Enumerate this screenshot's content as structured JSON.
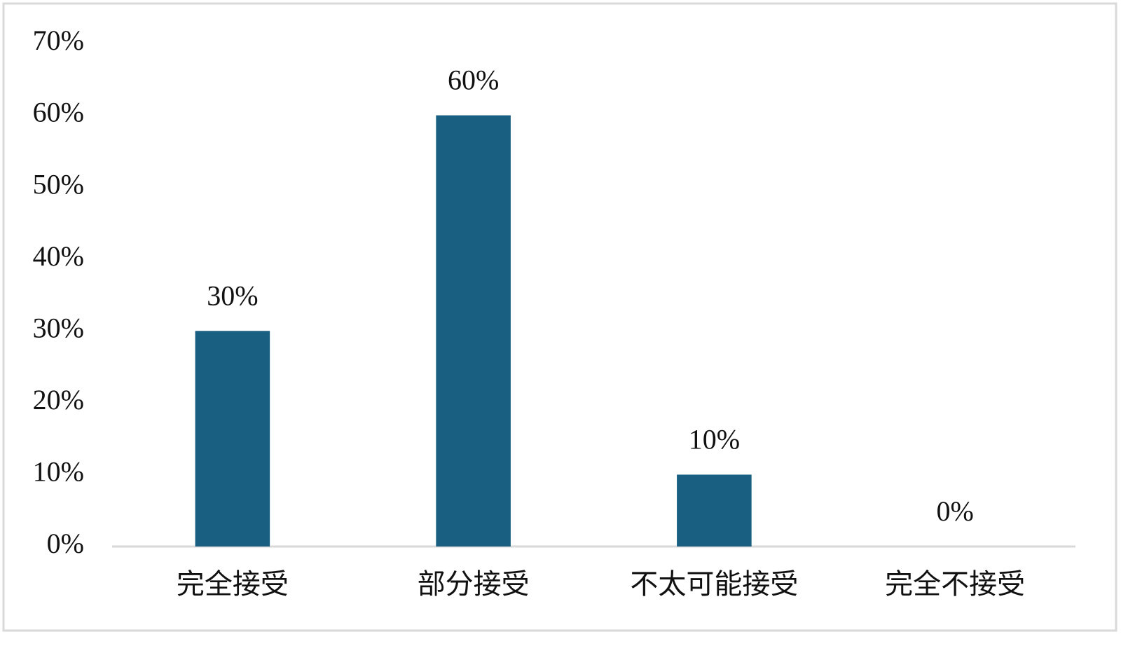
{
  "chart_data": {
    "type": "bar",
    "categories": [
      "完全接受",
      "部分接受",
      "不太可能接受",
      "完全不接受"
    ],
    "values": [
      30,
      60,
      10,
      0
    ],
    "value_labels": [
      "30%",
      "60%",
      "10%",
      "0%"
    ],
    "color": "#185f82",
    "ylim": [
      0,
      70
    ],
    "yticks": [
      {
        "value": 0,
        "label": "0%"
      },
      {
        "value": 10,
        "label": "10%"
      },
      {
        "value": 20,
        "label": "20%"
      },
      {
        "value": 30,
        "label": "30%"
      },
      {
        "value": 40,
        "label": "40%"
      },
      {
        "value": 50,
        "label": "50%"
      },
      {
        "value": 60,
        "label": "60%"
      },
      {
        "value": 70,
        "label": "70%"
      }
    ],
    "grid": false
  }
}
